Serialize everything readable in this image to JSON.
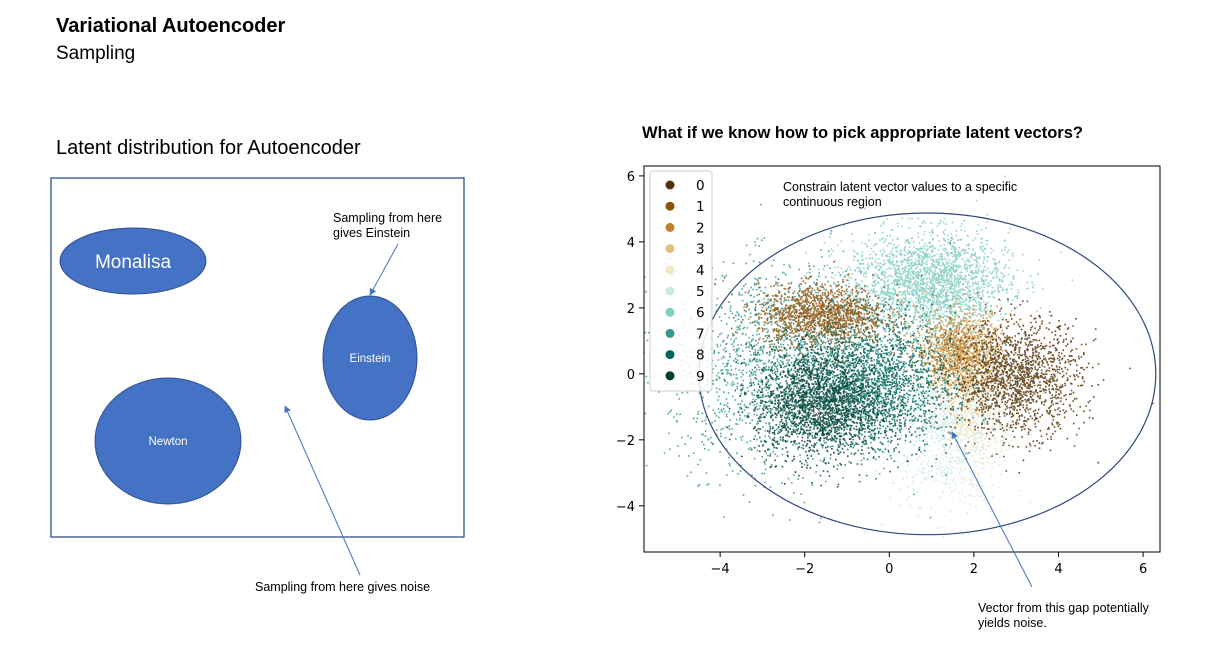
{
  "header": {
    "title": "Variational Autoencoder",
    "subtitle": "Sampling"
  },
  "left_panel": {
    "heading": "Latent distribution for Autoencoder",
    "clusters": [
      {
        "label": "Monalisa"
      },
      {
        "label": "Einstein"
      },
      {
        "label": "Newton"
      }
    ],
    "annotations": {
      "einstein_note": "Sampling from here gives Einstein",
      "noise_note": "Sampling from here gives noise"
    }
  },
  "right_panel": {
    "heading": "What if we know how to pick appropriate latent vectors?",
    "annotations": {
      "constrain_note": "Constrain latent vector values to a specific continuous region",
      "gap_note": "Vector from this gap potentially yields noise."
    }
  },
  "colors": {
    "ellipse_fill": "#4472c4",
    "ellipse_stroke": "#2f528f",
    "frame_stroke": "#2f528f",
    "arrow": "#4472c4",
    "boundary": "#2f4a7a"
  },
  "chart_data": {
    "type": "scatter",
    "xlim": [
      -5.8,
      6.4
    ],
    "ylim": [
      -5.4,
      6.3
    ],
    "xticks": [
      -4,
      -2,
      0,
      2,
      4,
      6
    ],
    "yticks": [
      -4,
      -2,
      0,
      2,
      4,
      6
    ],
    "grid": false,
    "legend": "top-left",
    "series": [
      {
        "name": "0",
        "color": "#543005",
        "center": [
          3.0,
          -0.1
        ]
      },
      {
        "name": "1",
        "color": "#8c510a",
        "center": [
          -1.6,
          1.8
        ]
      },
      {
        "name": "2",
        "color": "#bf812d",
        "center": [
          1.6,
          0.8
        ]
      },
      {
        "name": "3",
        "color": "#dfc27d",
        "center": [
          1.8,
          0.3
        ]
      },
      {
        "name": "4",
        "color": "#f6e8c3",
        "center": [
          1.9,
          -1.4
        ]
      },
      {
        "name": "5",
        "color": "#c7eae5",
        "center": [
          1.4,
          -1.5
        ]
      },
      {
        "name": "6",
        "color": "#80cdc1",
        "center": [
          0.9,
          2.8
        ]
      },
      {
        "name": "7",
        "color": "#35978f",
        "center": [
          -2.5,
          0.2
        ]
      },
      {
        "name": "8",
        "color": "#01665e",
        "center": [
          -0.4,
          -0.3
        ]
      },
      {
        "name": "9",
        "color": "#003c30",
        "center": [
          -1.7,
          -0.9
        ]
      }
    ],
    "boundary_ellipse": {
      "center": [
        0.9,
        0.0
      ],
      "rx": 5.4,
      "ry": 5.3
    }
  }
}
